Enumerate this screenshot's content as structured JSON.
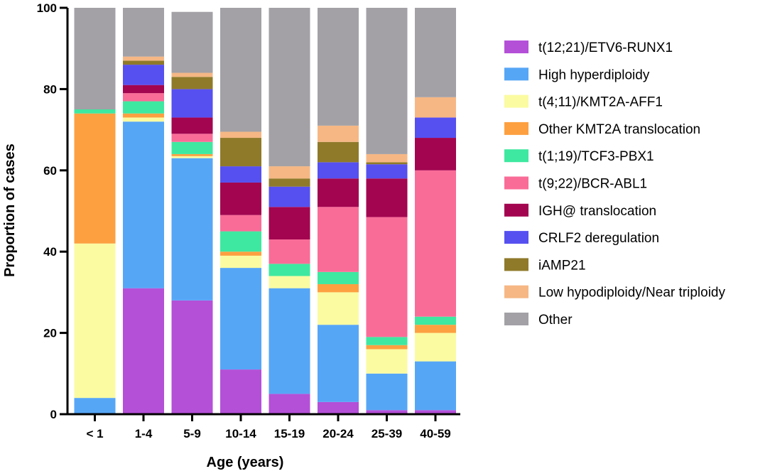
{
  "chart_data": {
    "type": "bar",
    "stacked": true,
    "title": "",
    "xlabel": "Age (years)",
    "ylabel": "Proportion of cases",
    "ylim": [
      0,
      100
    ],
    "yticks": [
      0,
      20,
      40,
      60,
      80,
      100
    ],
    "legend_position": "right",
    "categories": [
      "< 1",
      "1-4",
      "5-9",
      "10-14",
      "15-19",
      "20-24",
      "25-39",
      "40-59"
    ],
    "series": [
      {
        "name": "t(12;21)/ETV6-RUNX1",
        "color": "#b450d8",
        "values": [
          0,
          31,
          28,
          11,
          5,
          3,
          1,
          1
        ]
      },
      {
        "name": "High hyperdiploidy",
        "color": "#56a6f6",
        "values": [
          4,
          41,
          35,
          25,
          26,
          19,
          9,
          12
        ]
      },
      {
        "name": "t(4;11)/KMT2A-AFF1",
        "color": "#fbfba2",
        "values": [
          38,
          1,
          0.5,
          3,
          3,
          8,
          6,
          7
        ]
      },
      {
        "name": "Other KMT2A translocation",
        "color": "#fda040",
        "values": [
          32,
          1,
          0.5,
          1,
          0,
          2,
          1,
          2
        ]
      },
      {
        "name": "t(1;19)/TCF3-PBX1",
        "color": "#3ee8a0",
        "values": [
          1,
          3,
          3,
          5,
          3,
          3,
          2,
          2
        ]
      },
      {
        "name": "t(9;22)/BCR-ABL1",
        "color": "#fa6c98",
        "values": [
          0,
          2,
          2,
          4,
          6,
          16,
          29.5,
          36
        ]
      },
      {
        "name": "IGH@ translocation",
        "color": "#a30550",
        "values": [
          0,
          2,
          4,
          8,
          8,
          7,
          9.5,
          8
        ]
      },
      {
        "name": "CRLF2 deregulation",
        "color": "#5650f0",
        "values": [
          0,
          5,
          7,
          4,
          5,
          4,
          3.5,
          5
        ]
      },
      {
        "name": "iAMP21",
        "color": "#8f7a2a",
        "values": [
          0,
          1,
          3,
          7,
          2,
          5,
          0.5,
          0
        ]
      },
      {
        "name": "Low hypodiploidy/Near triploidy",
        "color": "#f6b784",
        "values": [
          0,
          1,
          1,
          1.5,
          3,
          4,
          2,
          5
        ]
      },
      {
        "name": "Other",
        "color": "#a3a1a6",
        "values": [
          25,
          12,
          15,
          30.5,
          39,
          29,
          36,
          22
        ]
      }
    ]
  }
}
